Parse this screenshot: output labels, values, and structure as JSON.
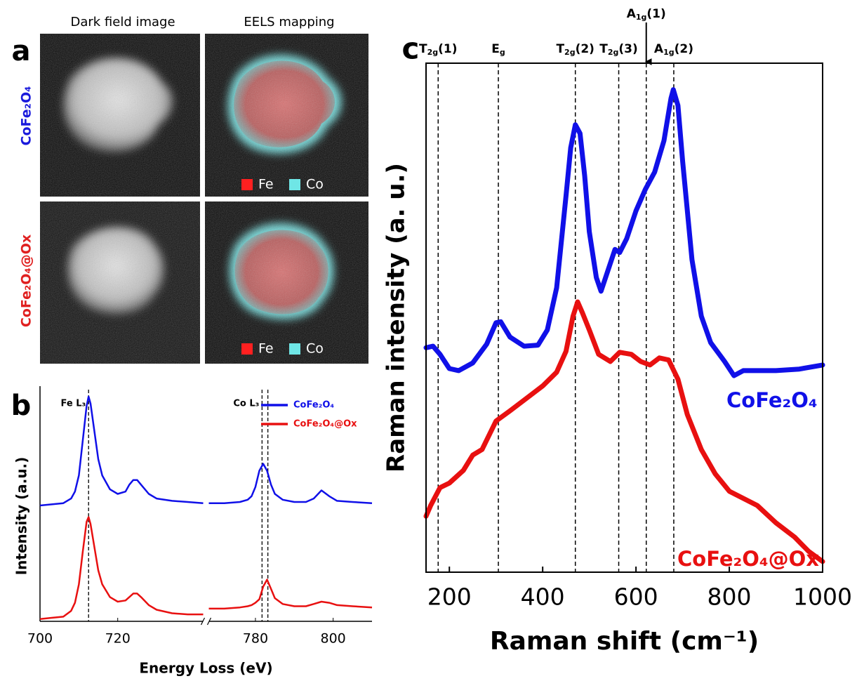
{
  "images": {
    "panel_label": "a",
    "column_titles": [
      "Dark field image",
      "EELS mapping"
    ],
    "row_labels": [
      {
        "text": "CoFe₂O₄",
        "color": "#1a1adc"
      },
      {
        "text": "CoFe₂O₄@Ox",
        "color": "#e02020"
      }
    ],
    "legend": [
      {
        "name": "Fe",
        "color": "#ff2020"
      },
      {
        "name": "Co",
        "color": "#6fe6e6"
      }
    ]
  },
  "chart_data": [
    {
      "type": "line",
      "panel_label": "b",
      "xlabel": "Energy Loss (eV)",
      "ylabel": "Intensity (a.u.)",
      "xlim": [
        700,
        810
      ],
      "xbreak": [
        742,
        768
      ],
      "xticks": [
        700,
        720,
        780,
        800
      ],
      "ylim": [
        0,
        10
      ],
      "x": [
        700,
        703,
        706,
        708,
        709,
        710,
        711,
        712,
        712.5,
        713,
        714,
        715,
        716,
        718,
        720,
        722,
        723,
        724,
        725,
        726,
        728,
        730,
        734,
        738,
        742,
        null,
        768,
        772,
        776,
        778,
        779,
        780,
        781,
        782,
        783,
        784,
        785,
        787,
        790,
        793,
        795,
        797,
        799,
        801,
        805,
        810
      ],
      "series": [
        {
          "name": "CoFe₂O₄",
          "color": "#1010e8",
          "values": [
            5.0,
            5.05,
            5.1,
            5.3,
            5.6,
            6.3,
            7.8,
            9.3,
            9.7,
            9.4,
            8.2,
            7.0,
            6.3,
            5.7,
            5.5,
            5.6,
            5.9,
            6.1,
            6.1,
            5.9,
            5.5,
            5.3,
            5.2,
            5.15,
            5.1,
            null,
            5.1,
            5.1,
            5.15,
            5.25,
            5.4,
            5.8,
            6.5,
            6.8,
            6.5,
            5.9,
            5.5,
            5.25,
            5.15,
            5.15,
            5.3,
            5.65,
            5.4,
            5.2,
            5.15,
            5.1
          ]
        },
        {
          "name": "CoFe₂O₄@Ox",
          "color": "#e81010",
          "values": [
            0.1,
            0.15,
            0.2,
            0.45,
            0.8,
            1.6,
            3.0,
            4.3,
            4.5,
            4.2,
            3.2,
            2.2,
            1.6,
            1.05,
            0.85,
            0.9,
            1.05,
            1.2,
            1.2,
            1.05,
            0.7,
            0.5,
            0.35,
            0.3,
            0.3,
            null,
            0.55,
            0.55,
            0.6,
            0.65,
            0.7,
            0.8,
            0.95,
            1.5,
            1.8,
            1.4,
            1.0,
            0.75,
            0.65,
            0.65,
            0.75,
            0.85,
            0.8,
            0.7,
            0.65,
            0.6
          ]
        }
      ],
      "vlines": [
        712.5,
        781.7,
        783.2
      ],
      "annotations": [
        "Fe L₃",
        "Co L₃"
      ],
      "legend": "upper right"
    },
    {
      "type": "line",
      "panel_label": "c",
      "xlabel": "Raman shift (cm⁻¹)",
      "ylabel": "Raman intensity (a. u.)",
      "xlim": [
        150,
        1000
      ],
      "xticks": [
        200,
        400,
        600,
        800,
        1000
      ],
      "ylim": [
        0,
        10
      ],
      "series": [
        {
          "name": "CoFe₂O₄",
          "color": "#1010e8",
          "x": [
            150,
            165,
            180,
            200,
            220,
            250,
            280,
            300,
            310,
            330,
            360,
            390,
            410,
            430,
            450,
            460,
            470,
            480,
            490,
            500,
            515,
            525,
            540,
            555,
            565,
            580,
            600,
            620,
            640,
            660,
            675,
            680,
            690,
            700,
            720,
            740,
            760,
            790,
            810,
            830,
            860,
            900,
            950,
            1000
          ],
          "values": [
            4.41,
            4.44,
            4.28,
            4.0,
            3.96,
            4.11,
            4.48,
            4.9,
            4.92,
            4.62,
            4.44,
            4.46,
            4.76,
            5.59,
            7.39,
            8.34,
            8.79,
            8.62,
            7.79,
            6.69,
            5.79,
            5.52,
            5.93,
            6.34,
            6.28,
            6.55,
            7.1,
            7.52,
            7.86,
            8.48,
            9.31,
            9.48,
            9.17,
            8.07,
            6.14,
            5.03,
            4.51,
            4.14,
            3.86,
            3.96,
            3.96,
            3.96,
            3.99,
            4.07
          ]
        },
        {
          "name": "CoFe₂O₄@Ox",
          "color": "#e81010",
          "x": [
            150,
            160,
            180,
            200,
            230,
            250,
            270,
            300,
            330,
            360,
            400,
            430,
            450,
            465,
            475,
            485,
            500,
            520,
            545,
            565,
            590,
            610,
            630,
            650,
            670,
            690,
            710,
            740,
            770,
            800,
            830,
            860,
            900,
            940,
            970,
            1000
          ],
          "values": [
            1.1,
            1.31,
            1.66,
            1.75,
            2.0,
            2.3,
            2.41,
            2.97,
            3.17,
            3.38,
            3.66,
            3.93,
            4.34,
            5.03,
            5.31,
            5.1,
            4.76,
            4.28,
            4.14,
            4.32,
            4.28,
            4.14,
            4.07,
            4.21,
            4.17,
            3.79,
            3.1,
            2.41,
            1.93,
            1.59,
            1.45,
            1.31,
            0.97,
            0.69,
            0.41,
            0.21
          ]
        }
      ],
      "peaks": [
        {
          "x": 176,
          "label": {
            "base": "T",
            "sub": "2g",
            "suffix": "(1)"
          }
        },
        {
          "x": 305,
          "label": {
            "base": "E",
            "sub": "g"
          }
        },
        {
          "x": 470,
          "label": {
            "base": "T",
            "sub": "2g",
            "suffix": "(2)"
          }
        },
        {
          "x": 563,
          "label": {
            "base": "T",
            "sub": "2g",
            "suffix": "(3)"
          }
        },
        {
          "x": 622,
          "label": {
            "base": "A",
            "sub": "1g",
            "suffix": "(1)"
          },
          "arrow": true
        },
        {
          "x": 681,
          "label": {
            "base": "A",
            "sub": "1g",
            "suffix": "(2)"
          }
        }
      ]
    }
  ]
}
